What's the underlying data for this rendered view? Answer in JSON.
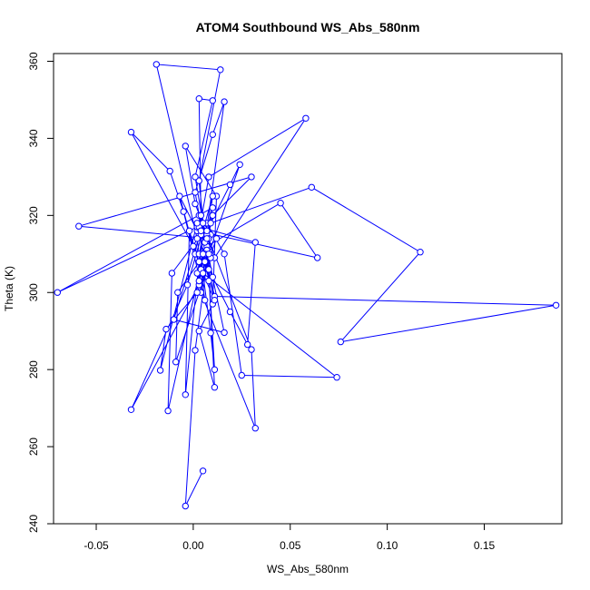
{
  "chart_data": {
    "type": "line",
    "title": "ATOM4 Southbound WS_Abs_580nm",
    "xlabel": "WS_Abs_580nm",
    "ylabel": "Theta (K)",
    "xlim": [
      -0.072,
      0.19
    ],
    "ylim": [
      240,
      362
    ],
    "x_ticks": [
      -0.05,
      0.0,
      0.05,
      0.1,
      0.15
    ],
    "x_tick_labels": [
      "-0.05",
      "0.00",
      "0.05",
      "0.10",
      "0.15"
    ],
    "y_ticks": [
      240,
      260,
      280,
      300,
      320,
      340,
      360
    ],
    "y_tick_labels": [
      "240",
      "260",
      "280",
      "300",
      "320",
      "340",
      "360"
    ],
    "grid": false,
    "legend": "none",
    "series_color": "#0000ff",
    "marker": "open-circle",
    "series": [
      {
        "points": [
          [
            0.005,
            253.7
          ],
          [
            -0.004,
            244.6
          ],
          [
            0.001,
            285.0
          ],
          [
            0.009,
            315.0
          ],
          [
            0.004,
            300.0
          ],
          [
            0.032,
            264.8
          ],
          [
            0.03,
            285.2
          ],
          [
            0.001,
            323.0
          ],
          [
            -0.004,
            338.0
          ],
          [
            0.012,
            325.0
          ],
          [
            0.01,
            297.0
          ],
          [
            0.003,
            290.0
          ],
          [
            0.011,
            275.4
          ],
          [
            0.007,
            315.0
          ],
          [
            0.005,
            305.0
          ],
          [
            0.074,
            278.0
          ],
          [
            0.025,
            278.5
          ],
          [
            0.016,
            310.0
          ],
          [
            0.007,
            318.0
          ],
          [
            0.003,
            302.0
          ],
          [
            -0.032,
            269.6
          ],
          [
            -0.003,
            302.0
          ],
          [
            0.01,
            325.0
          ],
          [
            0.006,
            310.0
          ],
          [
            0.011,
            299.0
          ],
          [
            0.187,
            296.7
          ],
          [
            0.076,
            287.2
          ],
          [
            0.117,
            310.5
          ],
          [
            0.061,
            327.3
          ],
          [
            0.009,
            318.0
          ],
          [
            -0.013,
            269.3
          ],
          [
            -0.011,
            305.0
          ],
          [
            0.004,
            315.0
          ],
          [
            0.003,
            320.0
          ],
          [
            0.011,
            309.0
          ],
          [
            0.058,
            345.2
          ],
          [
            0.008,
            330.0
          ],
          [
            0.001,
            310.0
          ],
          [
            -0.007,
            325.0
          ],
          [
            0.002,
            316.0
          ],
          [
            0.064,
            309.0
          ],
          [
            0.045,
            323.2
          ],
          [
            0.007,
            312.0
          ],
          [
            0.01,
            304.0
          ],
          [
            0.002,
            317.0
          ],
          [
            -0.07,
            300.0
          ],
          [
            0.01,
            322.0
          ],
          [
            0.006,
            312.0
          ],
          [
            0.002,
            305.0
          ],
          [
            0.008,
            314.0
          ],
          [
            -0.059,
            317.2
          ],
          [
            0.03,
            330.0
          ],
          [
            0.01,
            320.0
          ],
          [
            0.004,
            306.0
          ],
          [
            0.0,
            312.0
          ],
          [
            -0.032,
            341.6
          ],
          [
            -0.012,
            331.5
          ],
          [
            -0.005,
            321.0
          ],
          [
            0.006,
            298.0
          ],
          [
            0.002,
            314.0
          ],
          [
            -0.019,
            359.2
          ],
          [
            0.014,
            357.8
          ],
          [
            0.003,
            329.0
          ],
          [
            0.008,
            303.0
          ],
          [
            0.003,
            317.0
          ],
          [
            0.032,
            313.0
          ],
          [
            0.028,
            286.5
          ],
          [
            0.019,
            295.0
          ],
          [
            0.006,
            308.0
          ],
          [
            0.004,
            320.0
          ],
          [
            0.003,
            350.3
          ],
          [
            0.01,
            349.8
          ],
          [
            0.001,
            330.0
          ],
          [
            0.007,
            312.0
          ],
          [
            0.002,
            318.0
          ],
          [
            -0.017,
            279.8
          ],
          [
            -0.014,
            290.5
          ],
          [
            0.002,
            300.0
          ],
          [
            0.012,
            314.0
          ],
          [
            0.005,
            318.0
          ],
          [
            -0.004,
            273.5
          ],
          [
            -0.002,
            316.0
          ],
          [
            0.003,
            308.0
          ],
          [
            0.01,
            320.0
          ],
          [
            0.006,
            313.0
          ],
          [
            0.016,
            349.5
          ],
          [
            0.01,
            341.0
          ],
          [
            0.001,
            326.0
          ],
          [
            0.008,
            306.0
          ],
          [
            0.004,
            316.0
          ],
          [
            -0.01,
            293.0
          ],
          [
            0.016,
            289.6
          ],
          [
            0.007,
            311.0
          ],
          [
            0.004,
            316.0
          ],
          [
            0.009,
            309.0
          ],
          [
            -0.009,
            282.0
          ],
          [
            -0.008,
            300.0
          ],
          [
            0.006,
            310.0
          ],
          [
            0.003,
            303.0
          ],
          [
            0.008,
            310.0
          ],
          [
            0.024,
            333.2
          ],
          [
            0.019,
            328.0
          ],
          [
            0.007,
            316.0
          ],
          [
            0.003,
            310.0
          ],
          [
            0.007,
            314.0
          ],
          [
            0.011,
            280.0
          ],
          [
            0.009,
            289.5
          ],
          [
            0.005,
            305.0
          ],
          [
            0.011,
            298.0
          ],
          [
            0.005,
            310.0
          ]
        ]
      }
    ]
  }
}
